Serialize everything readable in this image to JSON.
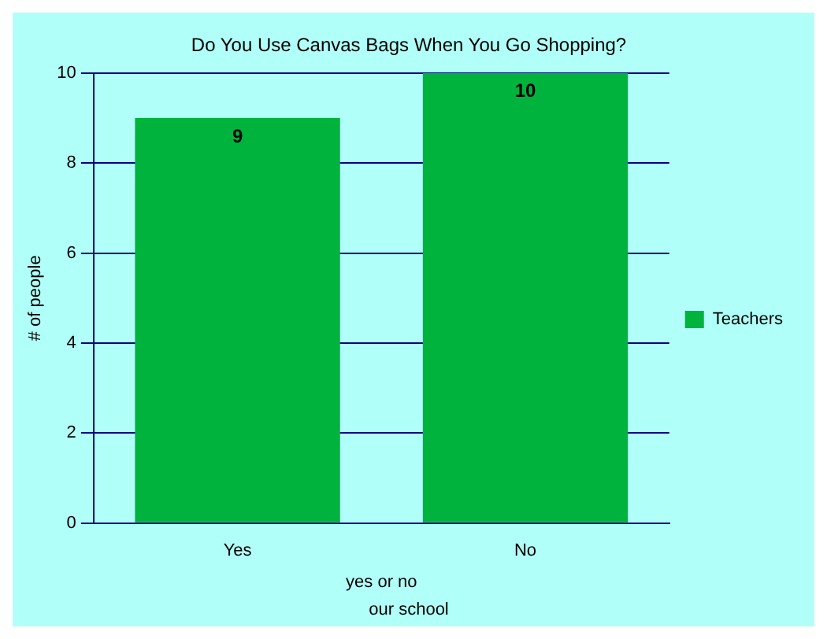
{
  "chart_data": {
    "type": "bar",
    "title": "Do You Use Canvas Bags When You Go Shopping?",
    "xlabel": "yes or no",
    "ylabel": "# of people",
    "annotations": [
      "our school"
    ],
    "categories": [
      "Yes",
      "No"
    ],
    "series": [
      {
        "name": "Teachers",
        "color": "#00b33c",
        "values": [
          9,
          10
        ]
      }
    ],
    "ylim": [
      0,
      10
    ],
    "yticks": [
      0,
      2,
      4,
      6,
      8,
      10
    ],
    "grid": "y",
    "legend": "right",
    "data_labels": true
  }
}
